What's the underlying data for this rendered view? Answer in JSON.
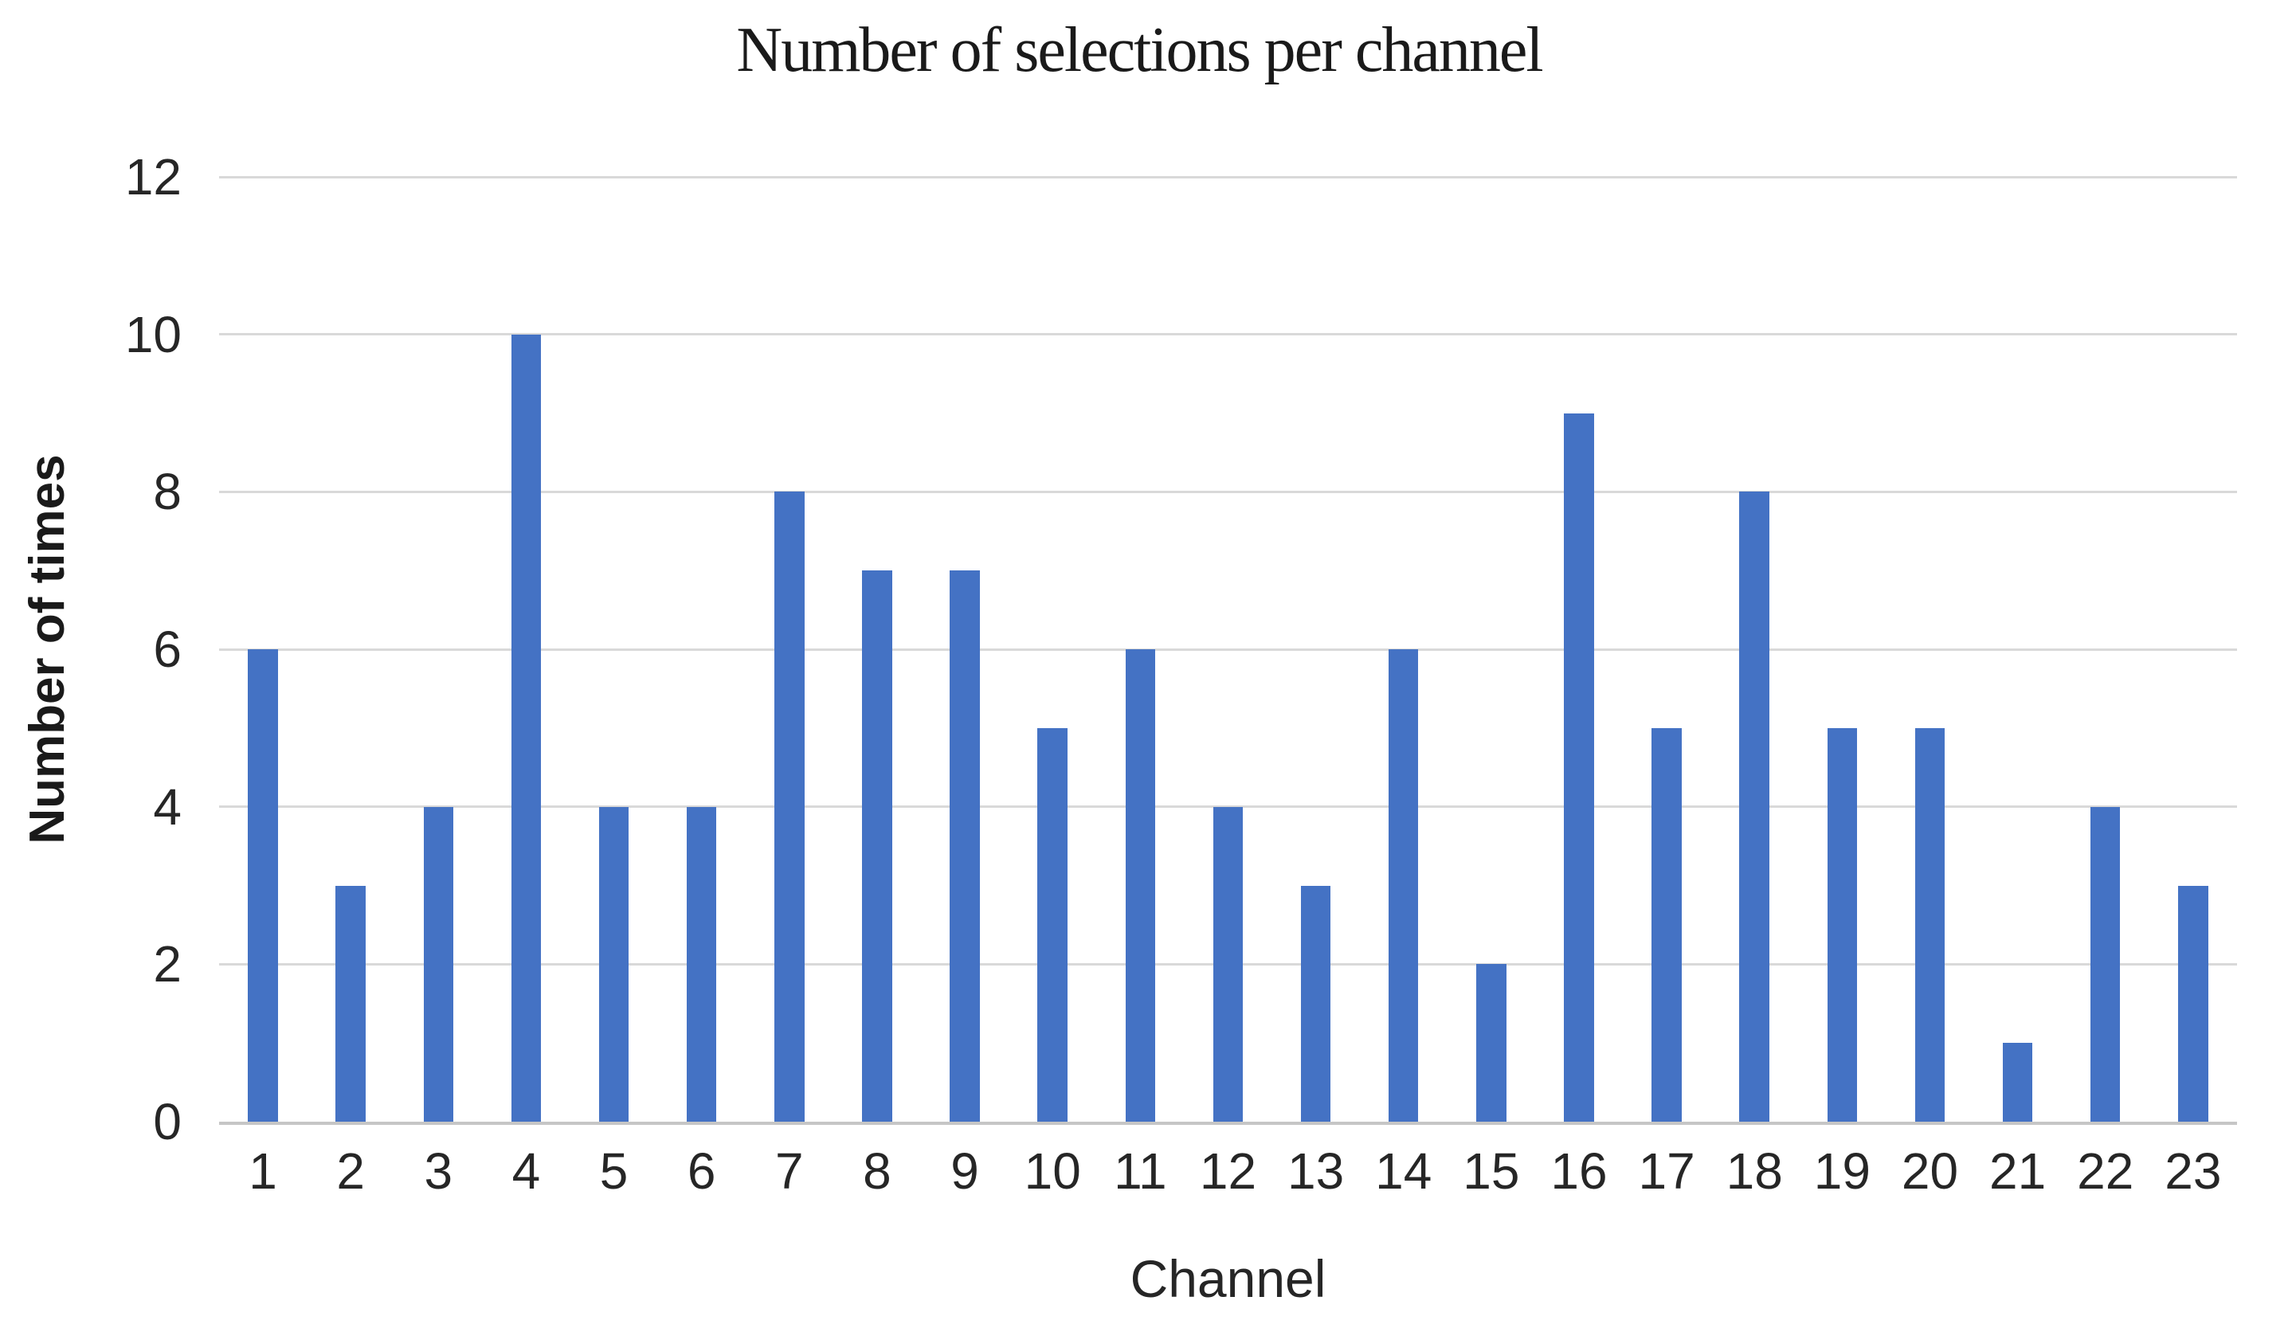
{
  "chart_data": {
    "type": "bar",
    "title": "Number of selections per channel",
    "xlabel": "Channel",
    "ylabel": "Number of times",
    "categories": [
      "1",
      "2",
      "3",
      "4",
      "5",
      "6",
      "7",
      "8",
      "9",
      "10",
      "11",
      "12",
      "13",
      "14",
      "15",
      "16",
      "17",
      "18",
      "19",
      "20",
      "21",
      "22",
      "23"
    ],
    "values": [
      6,
      3,
      4,
      10,
      4,
      4,
      8,
      7,
      7,
      5,
      6,
      4,
      3,
      6,
      2,
      9,
      5,
      8,
      5,
      5,
      1,
      4,
      3
    ],
    "ylim": [
      0,
      12
    ],
    "yticks": [
      0,
      2,
      4,
      6,
      8,
      10,
      12
    ],
    "grid": true,
    "legend": "none",
    "bar_color": "#4472c4",
    "gridline_color": "#d9d9d9",
    "axis_line_color": "#c6c6c6",
    "text_color": "#262626"
  }
}
